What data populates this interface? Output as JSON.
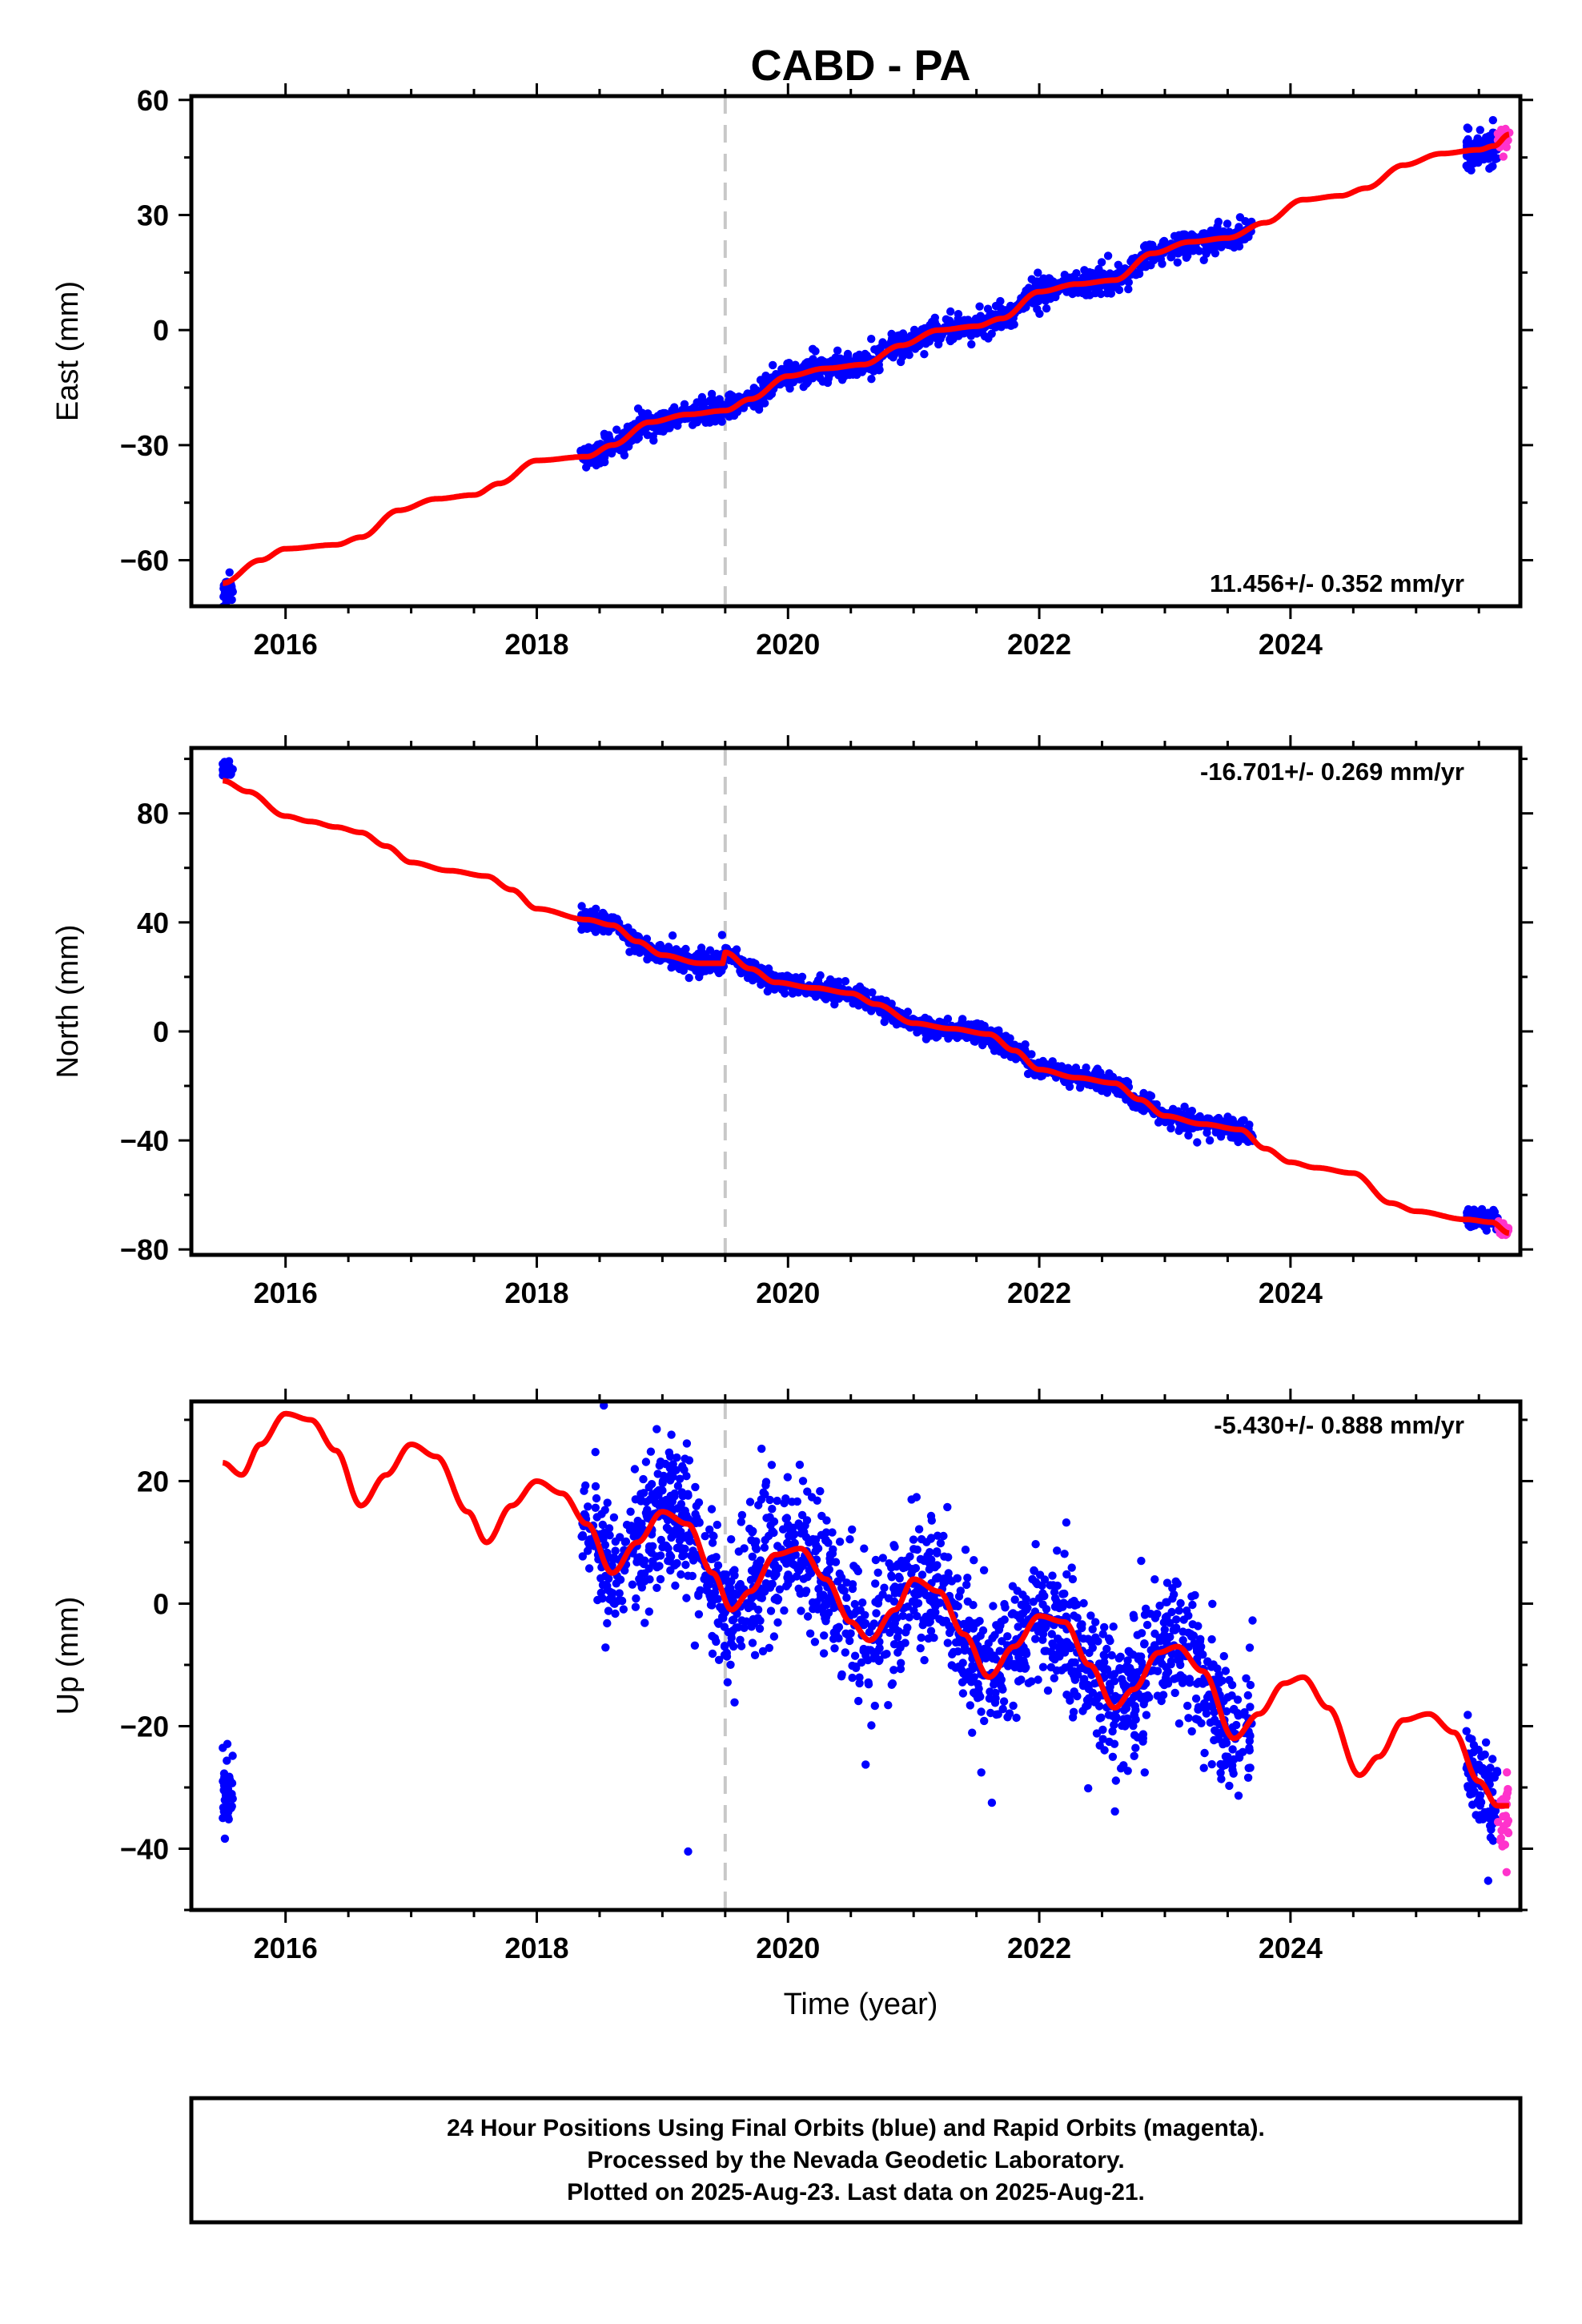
{
  "chart_data": {
    "title": "CABD - PA",
    "type": "scatter",
    "xlabel": "Time (year)",
    "xlim": [
      2015.25,
      2025.83
    ],
    "xticks": [
      2016,
      2018,
      2020,
      2022,
      2024
    ],
    "event_line_x": 2019.5,
    "colors": {
      "final": "#0000ff",
      "rapid": "#ff33cc",
      "model": "#ff0000",
      "event": "#c8c8c8"
    },
    "panels": [
      {
        "name": "east",
        "ylabel": "East (mm)",
        "ylim": [
          -72,
          61
        ],
        "yticks": [
          -60,
          -30,
          0,
          30,
          60
        ],
        "rate": "11.456+/- 0.352 mm/yr",
        "rate_position": "bottom-right",
        "model": {
          "points": [
            [
              2015.5,
              -66
            ],
            [
              2015.8,
              -60
            ],
            [
              2016.0,
              -57
            ],
            [
              2016.4,
              -56
            ],
            [
              2016.6,
              -54
            ],
            [
              2016.9,
              -47
            ],
            [
              2017.2,
              -44
            ],
            [
              2017.5,
              -43
            ],
            [
              2017.7,
              -40
            ],
            [
              2018.0,
              -34
            ],
            [
              2018.4,
              -33
            ],
            [
              2018.6,
              -30
            ],
            [
              2018.9,
              -24
            ],
            [
              2019.2,
              -22
            ],
            [
              2019.5,
              -21
            ],
            [
              2019.7,
              -18
            ],
            [
              2020.0,
              -12
            ],
            [
              2020.3,
              -10
            ],
            [
              2020.6,
              -9
            ],
            [
              2020.9,
              -4
            ],
            [
              2021.2,
              0
            ],
            [
              2021.5,
              1
            ],
            [
              2021.7,
              3
            ],
            [
              2022.0,
              10
            ],
            [
              2022.3,
              12
            ],
            [
              2022.6,
              13
            ],
            [
              2022.9,
              20
            ],
            [
              2023.2,
              23
            ],
            [
              2023.5,
              24
            ],
            [
              2023.8,
              28
            ],
            [
              2024.1,
              34
            ],
            [
              2024.4,
              35
            ],
            [
              2024.6,
              37
            ],
            [
              2024.9,
              43
            ],
            [
              2025.2,
              46
            ],
            [
              2025.5,
              47
            ],
            [
              2025.62,
              48
            ],
            [
              2025.74,
              51
            ]
          ]
        },
        "final_segments": [
          {
            "t": [
              2015.5,
              2015.58
            ],
            "n": 35,
            "model_offset": -2,
            "spread": 1.5
          },
          {
            "t": [
              2018.35,
              2023.7
            ],
            "n": 1400,
            "model_offset": 0,
            "spread": 1.6
          },
          {
            "t": [
              2025.4,
              2025.65
            ],
            "n": 80,
            "model_offset": 0,
            "spread": 2.5
          }
        ],
        "rapid_segment": {
          "t": [
            2025.65,
            2025.75
          ],
          "n": 25,
          "model_offset": 0,
          "spread": 1.6
        }
      },
      {
        "name": "north",
        "ylabel": "North (mm)",
        "ylim": [
          -82,
          104
        ],
        "yticks": [
          -80,
          -40,
          0,
          40,
          80
        ],
        "rate": "-16.701+/- 0.269 mm/yr",
        "rate_position": "top-right",
        "model": {
          "points": [
            [
              2015.5,
              92
            ],
            [
              2015.7,
              88
            ],
            [
              2016.0,
              79
            ],
            [
              2016.2,
              77
            ],
            [
              2016.4,
              75
            ],
            [
              2016.6,
              73
            ],
            [
              2016.8,
              68
            ],
            [
              2017.0,
              62
            ],
            [
              2017.3,
              59
            ],
            [
              2017.6,
              57
            ],
            [
              2017.8,
              52
            ],
            [
              2018.0,
              45
            ],
            [
              2018.4,
              41
            ],
            [
              2018.6,
              39
            ],
            [
              2018.8,
              33
            ],
            [
              2019.0,
              28
            ],
            [
              2019.3,
              25
            ],
            [
              2019.48,
              25
            ],
            [
              2019.5,
              29
            ],
            [
              2019.7,
              23
            ],
            [
              2019.9,
              18
            ],
            [
              2020.2,
              16
            ],
            [
              2020.5,
              14
            ],
            [
              2020.7,
              10
            ],
            [
              2021.0,
              3
            ],
            [
              2021.3,
              1
            ],
            [
              2021.6,
              -1
            ],
            [
              2021.8,
              -7
            ],
            [
              2022.0,
              -14
            ],
            [
              2022.3,
              -17
            ],
            [
              2022.6,
              -19
            ],
            [
              2022.8,
              -25
            ],
            [
              2023.0,
              -31
            ],
            [
              2023.3,
              -34
            ],
            [
              2023.6,
              -36
            ],
            [
              2023.8,
              -43
            ],
            [
              2024.0,
              -48
            ],
            [
              2024.2,
              -50
            ],
            [
              2024.5,
              -52
            ],
            [
              2024.8,
              -63
            ],
            [
              2025.0,
              -66
            ],
            [
              2025.4,
              -69
            ],
            [
              2025.6,
              -70
            ],
            [
              2025.74,
              -74
            ]
          ]
        },
        "final_segments": [
          {
            "t": [
              2015.5,
              2015.58
            ],
            "n": 35,
            "model_offset": 4,
            "spread": 1.4
          },
          {
            "t": [
              2018.35,
              2023.7
            ],
            "n": 1400,
            "model_offset": 0,
            "spread": 1.8
          },
          {
            "t": [
              2025.4,
              2025.65
            ],
            "n": 80,
            "model_offset": 1,
            "spread": 1.8
          }
        ],
        "rapid_segment": {
          "t": [
            2025.65,
            2025.75
          ],
          "n": 25,
          "model_offset": 0,
          "spread": 1.3
        }
      },
      {
        "name": "up",
        "ylabel": "Up (mm)",
        "ylim": [
          -50,
          33
        ],
        "yticks": [
          -40,
          -20,
          0,
          20
        ],
        "rate": "-5.430+/- 0.888 mm/yr",
        "rate_position": "top-right",
        "model": {
          "points": [
            [
              2015.5,
              23
            ],
            [
              2015.65,
              21
            ],
            [
              2015.8,
              26
            ],
            [
              2016.0,
              31
            ],
            [
              2016.2,
              30
            ],
            [
              2016.4,
              25
            ],
            [
              2016.6,
              16
            ],
            [
              2016.8,
              21
            ],
            [
              2017.0,
              26
            ],
            [
              2017.2,
              24
            ],
            [
              2017.45,
              15
            ],
            [
              2017.6,
              10
            ],
            [
              2017.8,
              16
            ],
            [
              2018.0,
              20
            ],
            [
              2018.2,
              18
            ],
            [
              2018.4,
              13
            ],
            [
              2018.6,
              5
            ],
            [
              2018.8,
              10
            ],
            [
              2019.0,
              15
            ],
            [
              2019.2,
              13
            ],
            [
              2019.4,
              5
            ],
            [
              2019.55,
              -1
            ],
            [
              2019.7,
              2
            ],
            [
              2019.9,
              8
            ],
            [
              2020.1,
              9
            ],
            [
              2020.3,
              4
            ],
            [
              2020.5,
              -3
            ],
            [
              2020.65,
              -6
            ],
            [
              2020.85,
              -1
            ],
            [
              2021.0,
              4
            ],
            [
              2021.2,
              2
            ],
            [
              2021.4,
              -5
            ],
            [
              2021.6,
              -12
            ],
            [
              2021.8,
              -7
            ],
            [
              2022.0,
              -2
            ],
            [
              2022.2,
              -3
            ],
            [
              2022.4,
              -10
            ],
            [
              2022.6,
              -17
            ],
            [
              2022.75,
              -14
            ],
            [
              2022.95,
              -8
            ],
            [
              2023.1,
              -7
            ],
            [
              2023.3,
              -11
            ],
            [
              2023.55,
              -22
            ],
            [
              2023.75,
              -18
            ],
            [
              2023.95,
              -13
            ],
            [
              2024.1,
              -12
            ],
            [
              2024.3,
              -17
            ],
            [
              2024.55,
              -28
            ],
            [
              2024.7,
              -25
            ],
            [
              2024.9,
              -19
            ],
            [
              2025.1,
              -18
            ],
            [
              2025.3,
              -21
            ],
            [
              2025.5,
              -29
            ],
            [
              2025.65,
              -33
            ],
            [
              2025.74,
              -33
            ]
          ]
        },
        "final_segments": [
          {
            "t": [
              2015.5,
              2015.58
            ],
            "n": 45,
            "center": -31,
            "spread": 3.5
          },
          {
            "t": [
              2018.35,
              2023.7
            ],
            "n": 1700,
            "model_offset": 0,
            "spread": 5.5
          },
          {
            "t": [
              2025.4,
              2025.65
            ],
            "n": 80,
            "model_offset": 0,
            "spread": 4
          }
        ],
        "rapid_segment": {
          "t": [
            2025.65,
            2025.75
          ],
          "n": 25,
          "model_offset": -1,
          "spread": 3.5
        }
      }
    ],
    "footer": [
      "24 Hour Positions Using Final Orbits (blue) and Rapid Orbits (magenta).",
      "Processed by the Nevada Geodetic Laboratory.",
      "Plotted on 2025-Aug-23. Last data on 2025-Aug-21."
    ]
  }
}
